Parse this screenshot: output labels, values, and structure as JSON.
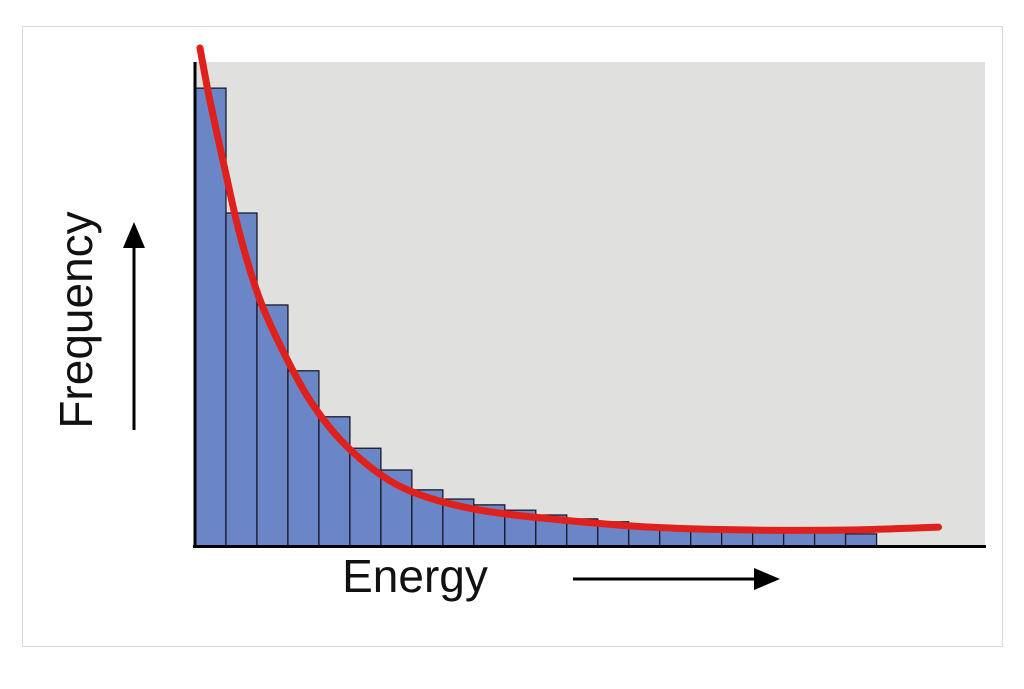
{
  "chart_data": {
    "type": "histogram",
    "xlabel": "Energy",
    "ylabel": "Frequency",
    "bins": [
      0,
      1,
      2,
      3,
      4,
      5,
      6,
      7,
      8,
      9,
      10,
      11,
      12,
      13,
      14,
      15,
      16,
      17,
      18,
      19,
      20,
      21,
      22
    ],
    "values": [
      94.6,
      68.8,
      49.8,
      36.2,
      26.7,
      20.2,
      15.7,
      11.6,
      9.7,
      8.5,
      7.4,
      6.4,
      5.6,
      5.0,
      4.3,
      3.9,
      3.5,
      3.3,
      3.1,
      2.9,
      2.7,
      2.5
    ],
    "color": "#6b86c6",
    "curve": {
      "color": "#e0201c",
      "x": [
        0.16,
        0.48,
        0.97,
        1.45,
        2.1,
        2.9,
        3.7,
        4.7,
        6.0,
        7.3,
        9.2,
        11.8,
        14.7,
        17.9,
        21.1,
        24.0
      ],
      "y": [
        102.9,
        92.1,
        77.7,
        64.3,
        50.8,
        39.5,
        30.2,
        21.9,
        14.7,
        10.5,
        7.4,
        5.4,
        3.9,
        3.3,
        3.3,
        3.9
      ]
    },
    "xlim": [
      0,
      25.5
    ],
    "ylim": [
      0,
      100
    ]
  }
}
